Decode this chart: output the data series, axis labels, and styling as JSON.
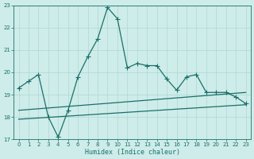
{
  "title": "",
  "xlabel": "Humidex (Indice chaleur)",
  "ylabel": "",
  "background_color": "#ceecea",
  "grid_color": "#aed8d4",
  "line_color": "#1a7068",
  "xlim": [
    -0.5,
    23.5
  ],
  "ylim": [
    17,
    23
  ],
  "xticks": [
    0,
    1,
    2,
    3,
    4,
    5,
    6,
    7,
    8,
    9,
    10,
    11,
    12,
    13,
    14,
    15,
    16,
    17,
    18,
    19,
    20,
    21,
    22,
    23
  ],
  "yticks": [
    17,
    18,
    19,
    20,
    21,
    22,
    23
  ],
  "line1_x": [
    0,
    1,
    2,
    3,
    4,
    5,
    6,
    7,
    8,
    9,
    10,
    11,
    12,
    13,
    14,
    15,
    16,
    17,
    18,
    19,
    20,
    21,
    22,
    23
  ],
  "line1_y": [
    19.3,
    19.6,
    19.9,
    18.0,
    17.1,
    18.3,
    19.8,
    20.7,
    21.5,
    22.9,
    22.4,
    20.2,
    20.4,
    20.3,
    20.3,
    19.7,
    19.2,
    19.8,
    19.9,
    19.1,
    19.1,
    19.1,
    18.9,
    18.6
  ],
  "line2_x": [
    0,
    23
  ],
  "line2_y": [
    17.9,
    18.55
  ],
  "line3_x": [
    0,
    23
  ],
  "line3_y": [
    18.3,
    19.1
  ],
  "marker": "+",
  "marker_size": 4,
  "linewidth": 0.9
}
